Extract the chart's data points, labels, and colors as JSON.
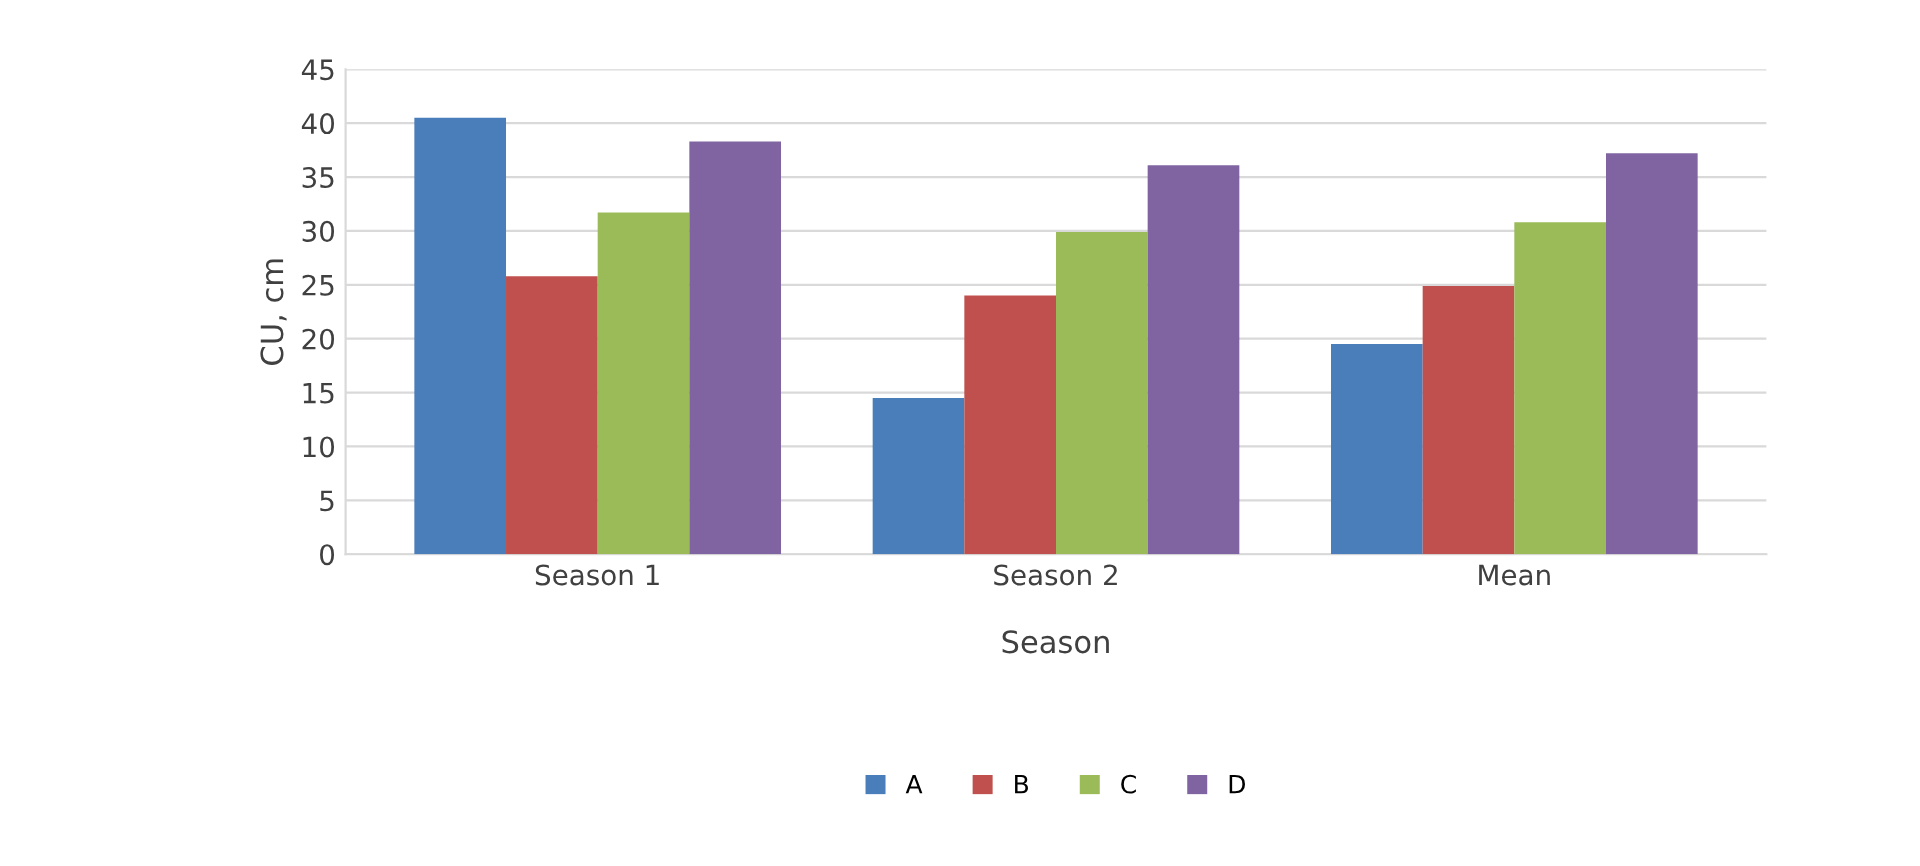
{
  "chart_data": {
    "type": "bar",
    "xlabel": "Season",
    "ylabel": "CU, cm",
    "categories": [
      "Season 1",
      "Season 2",
      "Mean"
    ],
    "series": [
      {
        "name": "A",
        "color": "#4a7ebb",
        "values": [
          40.5,
          14.5,
          19.5
        ]
      },
      {
        "name": "B",
        "color": "#c0504d",
        "values": [
          25.8,
          24,
          24.9
        ]
      },
      {
        "name": "C",
        "color": "#9bbb59",
        "values": [
          31.7,
          29.9,
          30.8
        ]
      },
      {
        "name": "D",
        "color": "#8064a2",
        "values": [
          38.3,
          36.1,
          37.2
        ]
      }
    ],
    "ylim": [
      0,
      45
    ],
    "yticks": [
      0,
      5,
      10,
      15,
      20,
      25,
      30,
      35,
      40,
      45
    ],
    "grid": "y",
    "legend": "bottom"
  }
}
